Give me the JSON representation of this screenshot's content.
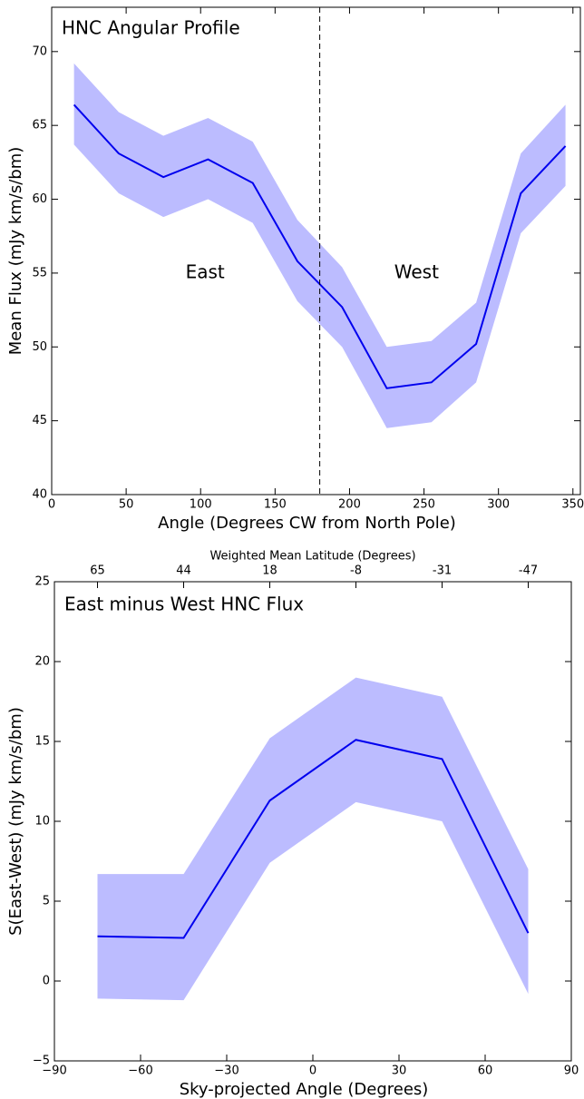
{
  "chart_data": [
    {
      "type": "line",
      "title": "HNC Angular Profile",
      "x_label": "Angle (Degrees CW from North Pole)",
      "y_label": "Mean Flux (mJy km/s/bm)",
      "x": [
        15,
        45,
        75,
        105,
        135,
        165,
        195,
        225,
        255,
        285,
        315,
        345
      ],
      "values": [
        66.4,
        63.1,
        61.5,
        62.7,
        61.1,
        55.8,
        52.7,
        47.2,
        47.6,
        50.2,
        60.4,
        63.6
      ],
      "upper": [
        69.2,
        65.9,
        64.3,
        65.5,
        63.9,
        58.6,
        55.4,
        50.0,
        50.4,
        53.0,
        63.1,
        66.4
      ],
      "lower": [
        63.7,
        60.4,
        58.8,
        60.0,
        58.4,
        53.1,
        50.0,
        44.5,
        44.9,
        47.6,
        57.7,
        60.9
      ],
      "color": "#0000ee",
      "band_color": "#bcbcff",
      "vline": 180,
      "annotations": [
        "East",
        "West"
      ],
      "xlim": [
        0,
        355
      ],
      "xticks": [
        0,
        50,
        100,
        150,
        200,
        250,
        300,
        350
      ],
      "ylim": [
        40,
        73
      ],
      "yticks": [
        40,
        45,
        50,
        55,
        60,
        65,
        70
      ]
    },
    {
      "type": "line",
      "title": "East minus West HNC Flux",
      "x_label": "Sky-projected Angle (Degrees)",
      "y_label": "S(East-West) (mJy km/s/bm)",
      "x2_label": "Weighted Mean Latitude (Degrees)",
      "x": [
        -75,
        -45,
        -15,
        15,
        45,
        75
      ],
      "values": [
        2.8,
        2.7,
        11.3,
        15.1,
        13.9,
        3.0
      ],
      "upper": [
        6.7,
        6.7,
        15.2,
        19.0,
        17.8,
        7.0
      ],
      "lower": [
        -1.1,
        -1.2,
        7.4,
        11.2,
        10.0,
        -0.8
      ],
      "color": "#0000ee",
      "band_color": "#bcbcff",
      "xlim": [
        -90,
        90
      ],
      "xticks": [
        {
          "value": -90,
          "label": "−90"
        },
        {
          "value": -60,
          "label": "−60"
        },
        {
          "value": -30,
          "label": "−30"
        },
        0,
        30,
        60,
        90
      ],
      "x2ticks": [
        {
          "value": -75,
          "label": "65"
        },
        {
          "value": -45,
          "label": "44"
        },
        {
          "value": -15,
          "label": "18"
        },
        {
          "value": 15,
          "label": "-8"
        },
        {
          "value": 45,
          "label": "-31"
        },
        {
          "value": 75,
          "label": "-47"
        }
      ],
      "ylim": [
        -5,
        25
      ],
      "yticks": [
        {
          "value": -5,
          "label": "−5"
        },
        0,
        5,
        10,
        15,
        20,
        25
      ]
    }
  ]
}
